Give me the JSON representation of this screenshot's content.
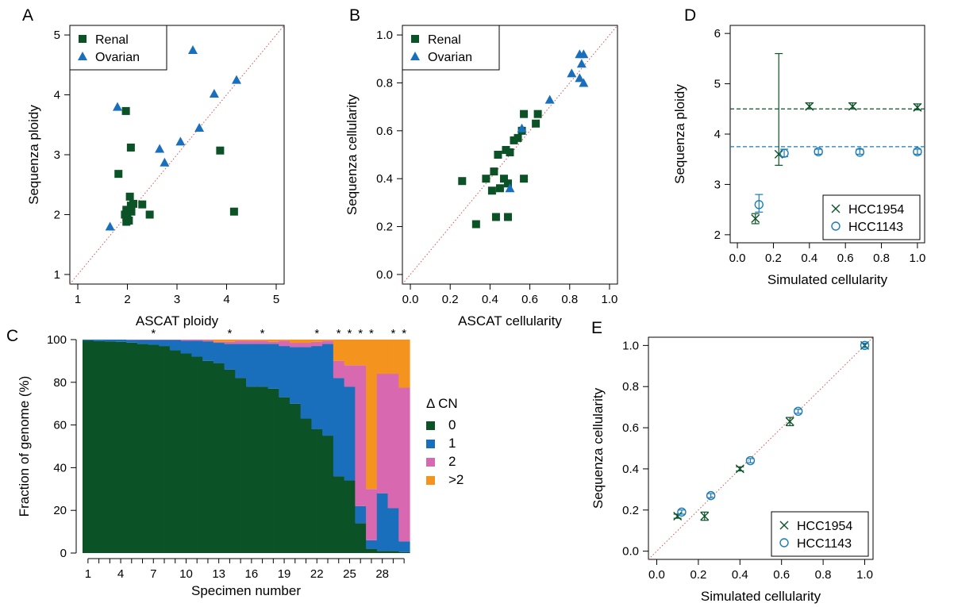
{
  "colors": {
    "renal": "#0b5227",
    "ovarian": "#1a6fbd",
    "cn0": "#0b5227",
    "cn1": "#1a6fbd",
    "cn2": "#d868b0",
    "cn3": "#f5931f",
    "hcc1954": "#0b5227",
    "hcc1143": "#1a7cb8",
    "diag": "#d9534f"
  },
  "chart_data": [
    {
      "id": "A",
      "panel_label": "A",
      "type": "scatter",
      "xlabel": "ASCAT ploidy",
      "ylabel": "Sequenza ploidy",
      "xlim": [
        1,
        5
      ],
      "ylim": [
        1,
        5
      ],
      "xticks": [
        "1",
        "2",
        "3",
        "4",
        "5"
      ],
      "yticks": [
        "1",
        "2",
        "3",
        "4",
        "5"
      ],
      "legend_position": "top-left",
      "diagonal": true,
      "series": [
        {
          "name": "Renal",
          "marker": "square",
          "points": [
            [
              1.97,
              3.73
            ],
            [
              2.07,
              3.12
            ],
            [
              1.82,
              2.68
            ],
            [
              2.05,
              2.3
            ],
            [
              2.07,
              2.15
            ],
            [
              1.98,
              2.08
            ],
            [
              1.95,
              2.0
            ],
            [
              2.0,
              1.95
            ],
            [
              1.98,
              1.88
            ],
            [
              2.03,
              1.9
            ],
            [
              2.12,
              2.18
            ],
            [
              2.3,
              2.17
            ],
            [
              2.08,
              2.05
            ],
            [
              2.45,
              2.0
            ],
            [
              3.87,
              3.07
            ],
            [
              4.15,
              2.05
            ]
          ]
        },
        {
          "name": "Ovarian",
          "marker": "triangle",
          "points": [
            [
              1.8,
              3.8
            ],
            [
              3.32,
              4.75
            ],
            [
              4.2,
              4.25
            ],
            [
              3.75,
              4.02
            ],
            [
              3.45,
              3.45
            ],
            [
              3.07,
              3.22
            ],
            [
              2.65,
              3.1
            ],
            [
              2.75,
              2.87
            ],
            [
              1.65,
              1.8
            ]
          ]
        }
      ]
    },
    {
      "id": "B",
      "panel_label": "B",
      "type": "scatter",
      "xlabel": "ASCAT cellularity",
      "ylabel": "Sequenza cellularity",
      "xlim": [
        0,
        1
      ],
      "ylim": [
        0,
        1
      ],
      "xticks": [
        "0.0",
        "0.2",
        "0.4",
        "0.6",
        "0.8",
        "1.0"
      ],
      "yticks": [
        "0.0",
        "0.2",
        "0.4",
        "0.6",
        "0.8",
        "1.0"
      ],
      "legend_position": "top-left",
      "diagonal": true,
      "series": [
        {
          "name": "Renal",
          "marker": "square",
          "points": [
            [
              0.26,
              0.39
            ],
            [
              0.33,
              0.21
            ],
            [
              0.38,
              0.4
            ],
            [
              0.41,
              0.35
            ],
            [
              0.42,
              0.43
            ],
            [
              0.43,
              0.24
            ],
            [
              0.44,
              0.5
            ],
            [
              0.45,
              0.36
            ],
            [
              0.47,
              0.4
            ],
            [
              0.48,
              0.52
            ],
            [
              0.49,
              0.38
            ],
            [
              0.49,
              0.24
            ],
            [
              0.5,
              0.51
            ],
            [
              0.52,
              0.56
            ],
            [
              0.54,
              0.57
            ],
            [
              0.56,
              0.6
            ],
            [
              0.57,
              0.67
            ],
            [
              0.57,
              0.4
            ],
            [
              0.63,
              0.63
            ],
            [
              0.64,
              0.67
            ]
          ]
        },
        {
          "name": "Ovarian",
          "marker": "triangle",
          "points": [
            [
              0.5,
              0.36
            ],
            [
              0.56,
              0.61
            ],
            [
              0.7,
              0.73
            ],
            [
              0.81,
              0.84
            ],
            [
              0.85,
              0.92
            ],
            [
              0.87,
              0.92
            ],
            [
              0.86,
              0.88
            ],
            [
              0.85,
              0.82
            ],
            [
              0.87,
              0.8
            ]
          ]
        }
      ]
    },
    {
      "id": "D",
      "panel_label": "D",
      "type": "scatter",
      "xlabel": "Simulated cellularity",
      "ylabel": "Sequenza ploidy",
      "xlim": [
        0,
        1
      ],
      "ylim": [
        2,
        6
      ],
      "xticks": [
        "0.0",
        "0.2",
        "0.4",
        "0.6",
        "0.8",
        "1.0"
      ],
      "yticks": [
        "2",
        "3",
        "4",
        "5",
        "6"
      ],
      "legend_position": "bottom-right",
      "hlines": [
        {
          "series": "HCC1954",
          "y": 4.5
        },
        {
          "series": "HCC1143",
          "y": 3.75
        }
      ],
      "series": [
        {
          "name": "HCC1954",
          "marker": "cross",
          "points": [
            [
              0.1,
              2.32
            ],
            [
              0.23,
              3.6
            ],
            [
              0.4,
              4.55
            ],
            [
              0.64,
              4.55
            ],
            [
              1.0,
              4.53
            ]
          ],
          "errors": [
            [
              2.22,
              2.42
            ],
            [
              3.38,
              5.6
            ],
            [
              4.5,
              4.62
            ],
            [
              4.5,
              4.62
            ],
            [
              4.48,
              4.6
            ]
          ]
        },
        {
          "name": "HCC1143",
          "marker": "circle",
          "points": [
            [
              0.12,
              2.6
            ],
            [
              0.26,
              3.62
            ],
            [
              0.45,
              3.65
            ],
            [
              0.68,
              3.64
            ],
            [
              1.0,
              3.65
            ]
          ],
          "errors": [
            [
              2.45,
              2.8
            ],
            [
              3.55,
              3.7
            ],
            [
              3.6,
              3.7
            ],
            [
              3.6,
              3.7
            ],
            [
              3.6,
              3.7
            ]
          ]
        }
      ]
    },
    {
      "id": "C",
      "panel_label": "C",
      "type": "area",
      "xlabel": "Specimen number",
      "ylabel": "Fraction of genome (%)",
      "ylim": [
        0,
        100
      ],
      "yticks": [
        "0",
        "20",
        "40",
        "60",
        "80",
        "100"
      ],
      "xtick_labels": [
        "1",
        "4",
        "7",
        "10",
        "13",
        "16",
        "19",
        "22",
        "25",
        "28"
      ],
      "legend_title": "Δ CN",
      "categories": [
        "1",
        "2",
        "3",
        "4",
        "5",
        "6",
        "7",
        "8",
        "9",
        "10",
        "11",
        "12",
        "13",
        "14",
        "15",
        "16",
        "17",
        "18",
        "19",
        "20",
        "21",
        "22",
        "23",
        "24",
        "25",
        "26",
        "27",
        "28",
        "29",
        "30"
      ],
      "series": [
        {
          "name": "0",
          "values": [
            99.6,
            99.3,
            99.2,
            99.0,
            98.6,
            98.0,
            97.6,
            97.0,
            95.0,
            93.5,
            92.0,
            90.0,
            89.0,
            86.0,
            82.0,
            78.0,
            78.0,
            77.0,
            73.0,
            70.0,
            63.0,
            58.0,
            55.0,
            36.0,
            34.0,
            14.0,
            2.0,
            1.0,
            1.0,
            0.5
          ]
        },
        {
          "name": "1",
          "values": [
            0.4,
            0.7,
            0.8,
            1.0,
            1.3,
            1.8,
            2.2,
            2.8,
            4.8,
            6.0,
            7.5,
            9.2,
            9.5,
            12.0,
            16.0,
            20.0,
            20.0,
            21.0,
            24.0,
            26.5,
            33.5,
            39.0,
            43.0,
            46.0,
            44.0,
            8.0,
            4.0,
            27.0,
            20.0,
            5.0
          ]
        },
        {
          "name": "2",
          "values": [
            0,
            0,
            0,
            0,
            0.1,
            0.2,
            0.2,
            0.2,
            0.2,
            0.5,
            0.5,
            0.6,
            0.5,
            1.0,
            1.5,
            1.5,
            1.5,
            1.0,
            2.5,
            2.0,
            2.0,
            2.0,
            1.5,
            8.0,
            10.0,
            66.0,
            24.0,
            56.0,
            63.0,
            72.0
          ]
        },
        {
          "name": ">2",
          "values": [
            0,
            0,
            0,
            0,
            0,
            0,
            0,
            0,
            0,
            0,
            0,
            0.2,
            1.0,
            1.0,
            0.5,
            0.5,
            0.5,
            1.0,
            0.5,
            1.5,
            1.5,
            1.0,
            0.5,
            10.0,
            12.0,
            12.0,
            70.0,
            16.0,
            16.0,
            22.5
          ]
        }
      ],
      "asterisk_specimens": [
        7,
        14,
        17,
        22,
        24,
        25,
        26,
        27,
        29,
        30
      ]
    },
    {
      "id": "E",
      "panel_label": "E",
      "type": "scatter",
      "xlabel": "Simulated cellularity",
      "ylabel": "Sequenza cellularity",
      "xlim": [
        0,
        1
      ],
      "ylim": [
        0,
        1
      ],
      "xticks": [
        "0.0",
        "0.2",
        "0.4",
        "0.6",
        "0.8",
        "1.0"
      ],
      "yticks": [
        "0.0",
        "0.2",
        "0.4",
        "0.6",
        "0.8",
        "1.0"
      ],
      "legend_position": "bottom-right",
      "diagonal": true,
      "series": [
        {
          "name": "HCC1954",
          "marker": "cross",
          "points": [
            [
              0.1,
              0.17
            ],
            [
              0.23,
              0.17
            ],
            [
              0.4,
              0.4
            ],
            [
              0.64,
              0.63
            ],
            [
              1.0,
              1.0
            ]
          ],
          "errors": [
            [
              0.16,
              0.18
            ],
            [
              0.15,
              0.19
            ],
            [
              0.39,
              0.41
            ],
            [
              0.61,
              0.65
            ],
            [
              0.99,
              1.01
            ]
          ]
        },
        {
          "name": "HCC1143",
          "marker": "circle",
          "points": [
            [
              0.12,
              0.19
            ],
            [
              0.26,
              0.27
            ],
            [
              0.45,
              0.44
            ],
            [
              0.68,
              0.68
            ],
            [
              1.0,
              1.0
            ]
          ],
          "errors": [
            [
              0.18,
              0.2
            ],
            [
              0.26,
              0.28
            ],
            [
              0.43,
              0.45
            ],
            [
              0.67,
              0.69
            ],
            [
              0.99,
              1.01
            ]
          ]
        }
      ]
    }
  ]
}
